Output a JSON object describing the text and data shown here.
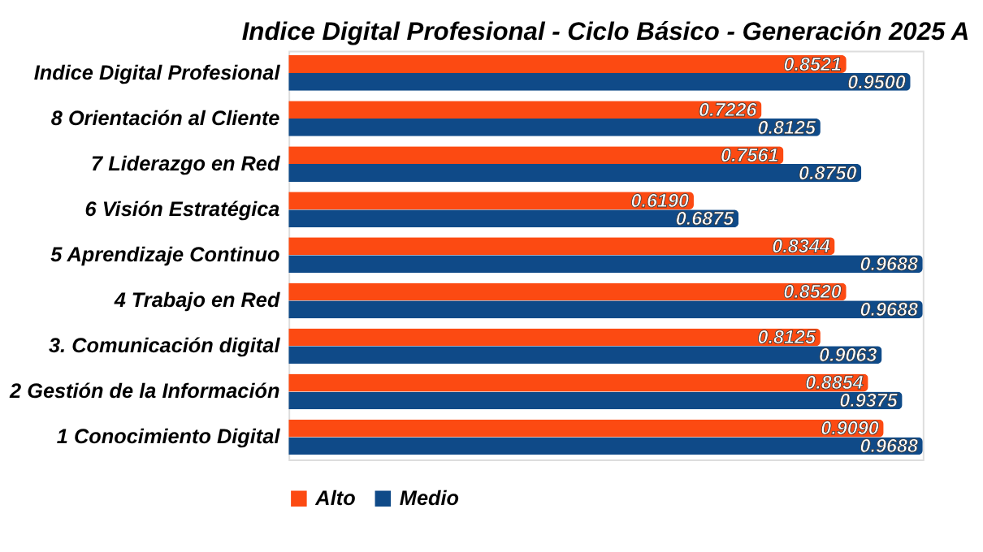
{
  "chart_data": {
    "type": "bar",
    "orientation": "horizontal",
    "title": "Indice Digital Profesional - Ciclo Básico - Generación 2025 A",
    "categories": [
      "Indice Digital Profesional",
      "8 Orientación al Cliente",
      "7 Liderazgo en Red",
      "6 Visión Estratégica",
      "5 Aprendizaje Continuo",
      "4 Trabajo en Red",
      "3. Comunicación digital",
      "2 Gestión de la Información",
      "1 Conocimiento Digital"
    ],
    "series": [
      {
        "name": "Alto",
        "color": "#fc4a12",
        "values": [
          0.8521,
          0.7226,
          0.7561,
          0.619,
          0.8344,
          0.852,
          0.8125,
          0.8854,
          0.909
        ],
        "value_labels": [
          "0.8521",
          "0.7226",
          "0.7561",
          "0.6190",
          "0.8344",
          "0.8520",
          "0.8125",
          "0.8854",
          "0.9090"
        ]
      },
      {
        "name": "Medio",
        "color": "#0f4a88",
        "values": [
          0.95,
          0.8125,
          0.875,
          0.6875,
          0.9688,
          0.9688,
          0.9063,
          0.9375,
          0.9688
        ],
        "value_labels": [
          "0.9500",
          "0.8125",
          "0.8750",
          "0.6875",
          "0.9688",
          "0.9688",
          "0.9063",
          "0.9375",
          "0.9688"
        ]
      }
    ],
    "legend": "bottom",
    "tick_labels": "y"
  }
}
